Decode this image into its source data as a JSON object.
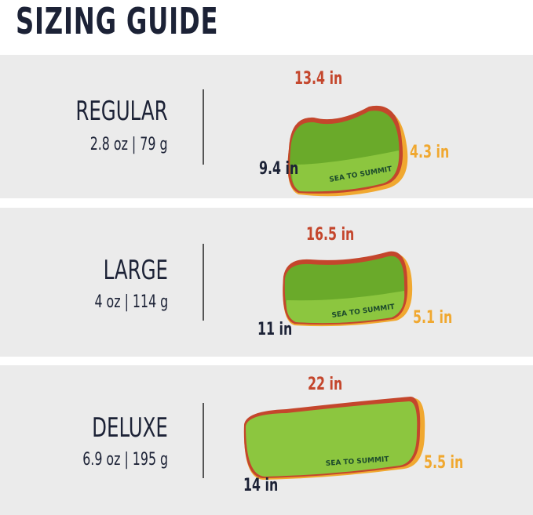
{
  "title": "SIZING GUIDE",
  "colors": {
    "text": "#1c2236",
    "length": "#c4462c",
    "height": "#f0a830",
    "pillow": "#8cc63f",
    "panel": "#ebebeb"
  },
  "brand_logo_text": "SEA TO SUMMIT",
  "sizes": [
    {
      "name": "REGULAR",
      "weight": "2.8 oz | 79 g",
      "length": "13.4 in",
      "height": "4.3 in",
      "width": "9.4 in"
    },
    {
      "name": "LARGE",
      "weight": "4 oz | 114 g",
      "length": "16.5 in",
      "height": "5.1 in",
      "width": "11 in"
    },
    {
      "name": "DELUXE",
      "weight": "6.9 oz | 195 g",
      "length": "22 in",
      "height": "5.5 in",
      "width": "14 in"
    }
  ]
}
